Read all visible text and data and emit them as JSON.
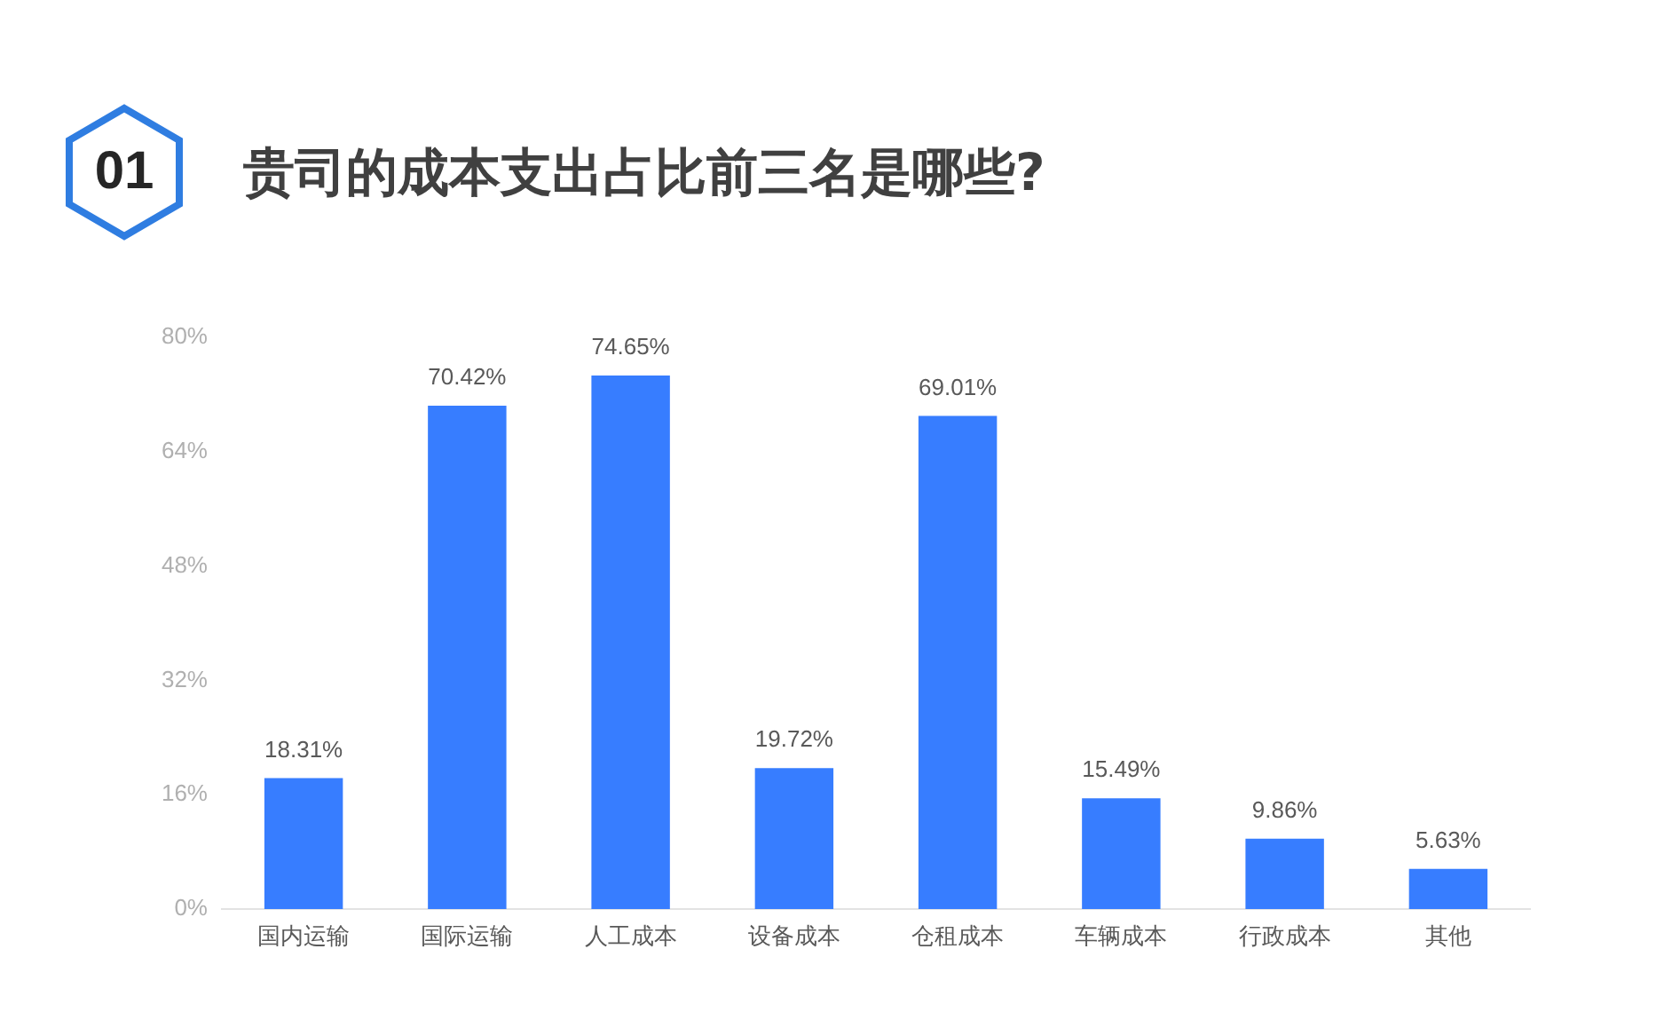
{
  "chart_data": {
    "type": "bar",
    "title": "贵司的成本支出占比前三名是哪些?",
    "annotations": [
      "01"
    ],
    "categories": [
      "国内运输",
      "国际运输",
      "人工成本",
      "设备成本",
      "仓租成本",
      "车辆成本",
      "行政成本",
      "其他"
    ],
    "values": [
      18.31,
      70.42,
      74.65,
      19.72,
      69.01,
      15.49,
      9.86,
      5.63
    ],
    "value_labels": [
      "18.31%",
      "70.42%",
      "74.65%",
      "19.72%",
      "69.01%",
      "15.49%",
      "9.86%",
      "5.63%"
    ],
    "color": "#377dff",
    "ylim": [
      0,
      80
    ],
    "yticks": [
      {
        "value": 0,
        "label": "0%"
      },
      {
        "value": 16,
        "label": "16%"
      },
      {
        "value": 32,
        "label": "32%"
      },
      {
        "value": 48,
        "label": "48%"
      },
      {
        "value": 64,
        "label": "64%"
      },
      {
        "value": 80,
        "label": "80%"
      }
    ],
    "grid": false,
    "legend": false
  }
}
